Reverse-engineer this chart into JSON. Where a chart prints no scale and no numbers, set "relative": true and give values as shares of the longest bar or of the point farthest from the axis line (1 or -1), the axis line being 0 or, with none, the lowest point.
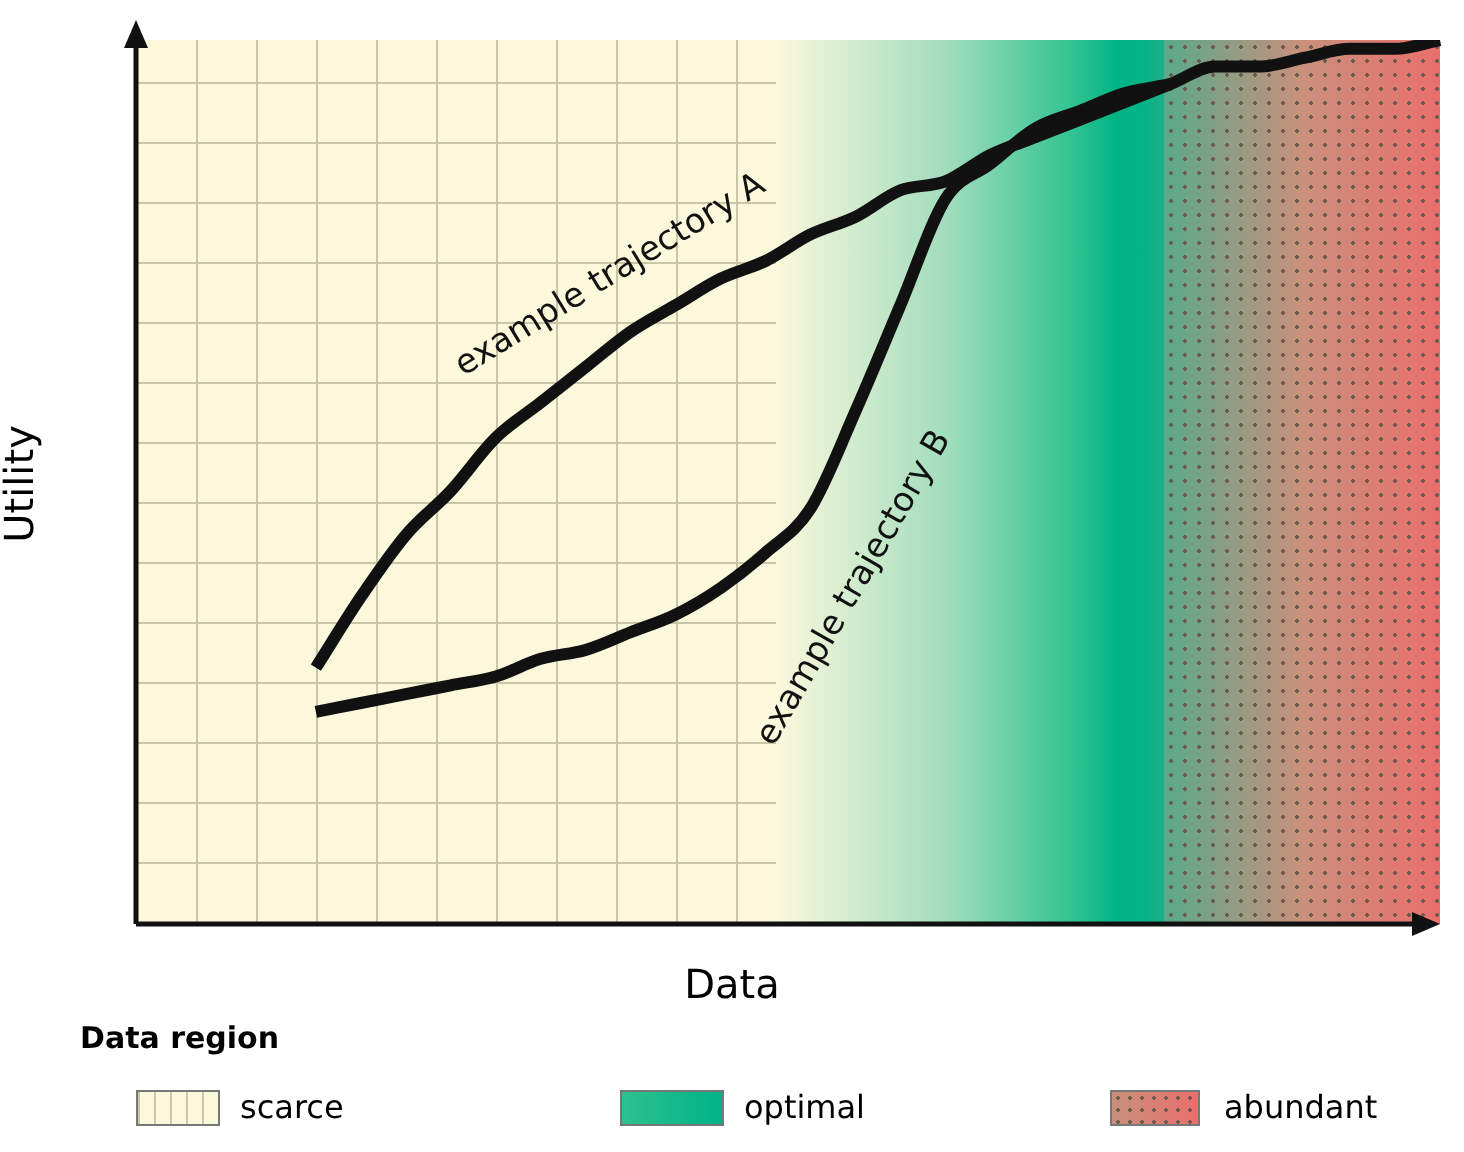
{
  "chart_data": {
    "type": "line",
    "relative": true,
    "xlabel": "Data",
    "ylabel": "Utility",
    "legend_title": "Data region",
    "annotations": [
      "scarce",
      "optimal",
      "abundant"
    ],
    "categories": [
      null,
      null,
      null,
      null,
      null,
      null,
      null,
      null,
      null,
      null,
      null,
      null,
      null,
      null,
      null,
      null,
      null,
      null,
      null,
      null,
      null,
      null,
      null,
      null,
      null,
      null,
      null,
      null,
      null,
      null
    ],
    "series": [
      {
        "name": "example trajectory A",
        "color": "#111111",
        "values": [
          null,
          null,
          null,
          null,
          0.29,
          0.37,
          0.44,
          0.49,
          0.55,
          0.59,
          0.63,
          0.67,
          0.7,
          0.73,
          0.75,
          0.78,
          0.8,
          0.83,
          0.84,
          0.87,
          0.89,
          0.91,
          0.93,
          0.95,
          0.97,
          0.97,
          0.98,
          0.99,
          0.99,
          1.0
        ]
      },
      {
        "name": "example trajectory B",
        "color": "#111111",
        "values": [
          null,
          null,
          null,
          null,
          0.24,
          0.25,
          0.26,
          0.27,
          0.28,
          0.3,
          0.31,
          0.33,
          0.35,
          0.38,
          0.42,
          0.47,
          0.58,
          0.7,
          0.82,
          0.86,
          0.9,
          0.92,
          0.94,
          0.95,
          null,
          null,
          null,
          null,
          null,
          null
        ]
      }
    ],
    "marker": "none",
    "line_style": "solid"
  }
}
